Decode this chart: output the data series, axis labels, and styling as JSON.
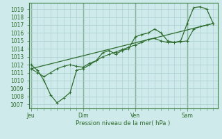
{
  "xlabel": "Pression niveau de la mer( hPa )",
  "background_color": "#ceeaea",
  "grid_color": "#a8cccc",
  "line_color": "#2d6b2d",
  "ylim": [
    1006.5,
    1019.8
  ],
  "yticks": [
    1007,
    1008,
    1009,
    1010,
    1011,
    1012,
    1013,
    1014,
    1015,
    1016,
    1017,
    1018,
    1019
  ],
  "day_positions": [
    0,
    48,
    96,
    144
  ],
  "day_labels": [
    "Jeu",
    "Dim",
    "Ven",
    "Sam"
  ],
  "xlim": [
    -2,
    172
  ],
  "line1_x": [
    0,
    6,
    12,
    18,
    24,
    30,
    36,
    42,
    48,
    54,
    60,
    66,
    72,
    78,
    84,
    90,
    96,
    102,
    108,
    114,
    120,
    126,
    132,
    138,
    144,
    150,
    156,
    162,
    168
  ],
  "line1_y": [
    1012.0,
    1011.3,
    1010.0,
    1008.2,
    1007.2,
    1007.8,
    1008.5,
    1011.3,
    1011.5,
    1012.0,
    1012.5,
    1013.5,
    1013.8,
    1013.3,
    1013.8,
    1014.0,
    1015.5,
    1015.8,
    1016.0,
    1016.5,
    1016.0,
    1015.0,
    1014.8,
    1015.0,
    1017.2,
    1019.2,
    1019.3,
    1019.0,
    1017.2
  ],
  "line2_x": [
    0,
    6,
    12,
    18,
    24,
    30,
    36,
    42,
    48,
    54,
    60,
    66,
    72,
    78,
    84,
    90,
    96,
    102,
    108,
    114,
    120,
    126,
    132,
    138,
    144,
    150,
    156,
    162,
    168
  ],
  "line2_y": [
    1011.5,
    1011.0,
    1010.5,
    1011.0,
    1011.5,
    1011.8,
    1012.0,
    1011.8,
    1011.7,
    1012.2,
    1012.5,
    1013.0,
    1013.3,
    1013.6,
    1013.9,
    1014.2,
    1014.5,
    1014.8,
    1015.2,
    1015.3,
    1015.0,
    1014.8,
    1014.8,
    1014.9,
    1015.0,
    1016.5,
    1016.8,
    1017.0,
    1017.2
  ],
  "line3_x": [
    0,
    168
  ],
  "line3_y": [
    1011.5,
    1017.2
  ]
}
